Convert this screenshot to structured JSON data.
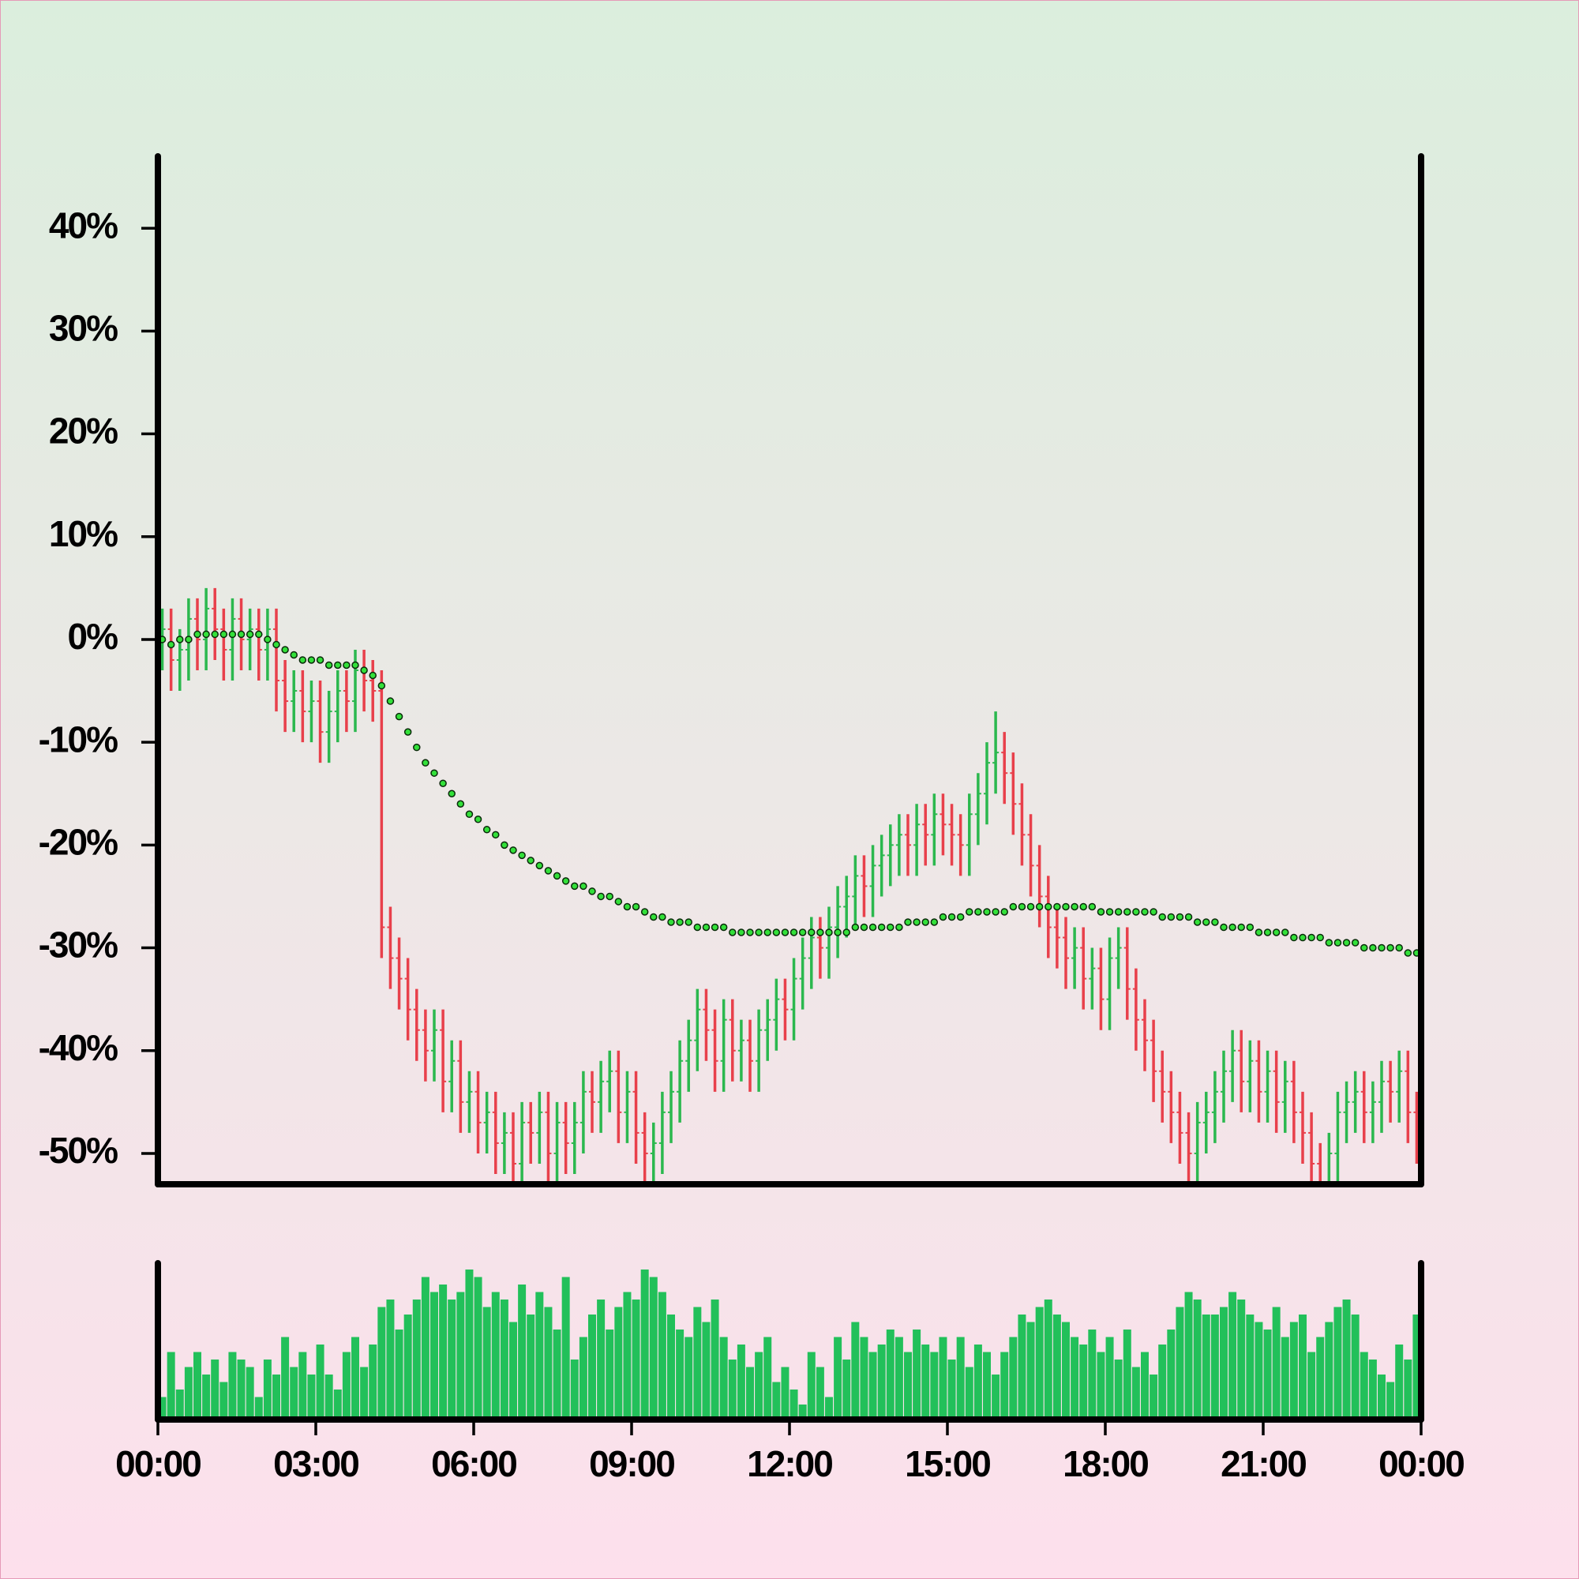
{
  "chart_data": {
    "type": "ohlc",
    "ylim": [
      -53,
      47
    ],
    "yticks": [
      {
        "value": 40,
        "label": "40%"
      },
      {
        "value": 30,
        "label": "30%"
      },
      {
        "value": 20,
        "label": "20%"
      },
      {
        "value": 10,
        "label": "10%"
      },
      {
        "value": 0,
        "label": "0%"
      },
      {
        "value": -10,
        "label": "-10%"
      },
      {
        "value": -20,
        "label": "-20%"
      },
      {
        "value": -30,
        "label": "-30%"
      },
      {
        "value": -40,
        "label": "-40%"
      },
      {
        "value": -50,
        "label": "-50%"
      }
    ],
    "xlim": [
      0,
      1440
    ],
    "xticks": [
      {
        "value": 0,
        "label": "00:00"
      },
      {
        "value": 180,
        "label": "03:00"
      },
      {
        "value": 360,
        "label": "06:00"
      },
      {
        "value": 540,
        "label": "09:00"
      },
      {
        "value": 720,
        "label": "12:00"
      },
      {
        "value": 900,
        "label": "15:00"
      },
      {
        "value": 1080,
        "label": "18:00"
      },
      {
        "value": 1260,
        "label": "21:00"
      },
      {
        "value": 1440,
        "label": "00:00"
      }
    ],
    "x": [
      5,
      15,
      25,
      35,
      45,
      55,
      65,
      75,
      85,
      95,
      105,
      115,
      125,
      135,
      145,
      155,
      165,
      175,
      185,
      195,
      205,
      215,
      225,
      235,
      245,
      255,
      265,
      275,
      285,
      295,
      305,
      315,
      325,
      335,
      345,
      355,
      365,
      375,
      385,
      395,
      405,
      415,
      425,
      435,
      445,
      455,
      465,
      475,
      485,
      495,
      505,
      515,
      525,
      535,
      545,
      555,
      565,
      575,
      585,
      595,
      605,
      615,
      625,
      635,
      645,
      655,
      665,
      675,
      685,
      695,
      705,
      715,
      725,
      735,
      745,
      755,
      765,
      775,
      785,
      795,
      805,
      815,
      825,
      835,
      845,
      855,
      865,
      875,
      885,
      895,
      905,
      915,
      925,
      935,
      945,
      955,
      965,
      975,
      985,
      995,
      1005,
      1015,
      1025,
      1035,
      1045,
      1055,
      1065,
      1075,
      1085,
      1095,
      1105,
      1115,
      1125,
      1135,
      1145,
      1155,
      1165,
      1175,
      1185,
      1195,
      1205,
      1215,
      1225,
      1235,
      1245,
      1255,
      1265,
      1275,
      1285,
      1295,
      1305,
      1315,
      1325,
      1335,
      1345,
      1355,
      1365,
      1375,
      1385,
      1395,
      1405,
      1415,
      1425,
      1435
    ],
    "open": [
      0,
      1,
      -2,
      -1,
      2,
      0,
      3,
      1,
      -1,
      2,
      0,
      1,
      -1,
      1,
      -4,
      -6,
      -5,
      -7,
      -6,
      -9,
      -7,
      -5,
      -6,
      -3,
      -4,
      -5,
      -28,
      -31,
      -33,
      -36,
      -38,
      -40,
      -38,
      -43,
      -41,
      -45,
      -44,
      -47,
      -46,
      -49,
      -48,
      -51,
      -47,
      -48,
      -46,
      -50,
      -47,
      -49,
      -47,
      -44,
      -45,
      -43,
      -42,
      -46,
      -44,
      -48,
      -50,
      -49,
      -46,
      -44,
      -41,
      -39,
      -36,
      -38,
      -41,
      -37,
      -40,
      -39,
      -41,
      -38,
      -37,
      -35,
      -36,
      -33,
      -31,
      -29,
      -30,
      -28,
      -26,
      -25,
      -23,
      -24,
      -22,
      -21,
      -20,
      -19,
      -20,
      -18,
      -19,
      -17,
      -18,
      -19,
      -20,
      -17,
      -15,
      -12,
      -11,
      -13,
      -16,
      -19,
      -22,
      -25,
      -28,
      -29,
      -31,
      -30,
      -33,
      -32,
      -35,
      -31,
      -30,
      -34,
      -37,
      -39,
      -42,
      -44,
      -46,
      -48,
      -50,
      -47,
      -46,
      -44,
      -42,
      -40,
      -43,
      -41,
      -44,
      -42,
      -45,
      -43,
      -46,
      -48,
      -51,
      -53,
      -50,
      -46,
      -45,
      -44,
      -46,
      -45,
      -43,
      -44,
      -42,
      -46
    ],
    "high": [
      3,
      3,
      1,
      4,
      4,
      5,
      5,
      3,
      4,
      4,
      3,
      3,
      3,
      3,
      -2,
      -3,
      -3,
      -4,
      -4,
      -5,
      -3,
      -3,
      -1,
      -1,
      -2,
      -3,
      -26,
      -29,
      -31,
      -34,
      -36,
      -36,
      -36,
      -39,
      -39,
      -42,
      -42,
      -44,
      -44,
      -46,
      -46,
      -45,
      -45,
      -44,
      -44,
      -45,
      -45,
      -45,
      -42,
      -42,
      -41,
      -40,
      -40,
      -42,
      -42,
      -46,
      -47,
      -44,
      -42,
      -39,
      -37,
      -34,
      -34,
      -36,
      -35,
      -35,
      -37,
      -37,
      -36,
      -35,
      -33,
      -33,
      -31,
      -29,
      -27,
      -27,
      -26,
      -24,
      -23,
      -21,
      -21,
      -20,
      -19,
      -18,
      -17,
      -17,
      -16,
      -16,
      -15,
      -15,
      -16,
      -17,
      -15,
      -13,
      -10,
      -7,
      -9,
      -11,
      -14,
      -17,
      -20,
      -23,
      -26,
      -27,
      -28,
      -28,
      -30,
      -30,
      -29,
      -28,
      -28,
      -32,
      -35,
      -37,
      -40,
      -42,
      -44,
      -46,
      -45,
      -44,
      -42,
      -40,
      -38,
      -38,
      -39,
      -39,
      -40,
      -40,
      -41,
      -41,
      -44,
      -46,
      -49,
      -48,
      -44,
      -43,
      -42,
      -42,
      -43,
      -41,
      -41,
      -40,
      -40,
      -44
    ],
    "low": [
      -3,
      -5,
      -5,
      -4,
      -3,
      -3,
      -2,
      -4,
      -4,
      -3,
      -3,
      -4,
      -4,
      -7,
      -9,
      -9,
      -10,
      -10,
      -12,
      -12,
      -10,
      -9,
      -9,
      -7,
      -8,
      -31,
      -34,
      -36,
      -39,
      -41,
      -43,
      -43,
      -46,
      -46,
      -48,
      -48,
      -50,
      -50,
      -52,
      -52,
      -54,
      -54,
      -51,
      -51,
      -53,
      -53,
      -52,
      -52,
      -50,
      -48,
      -48,
      -46,
      -49,
      -49,
      -51,
      -53,
      -53,
      -52,
      -49,
      -47,
      -44,
      -42,
      -41,
      -44,
      -44,
      -43,
      -43,
      -44,
      -44,
      -41,
      -40,
      -39,
      -39,
      -36,
      -34,
      -33,
      -33,
      -31,
      -29,
      -28,
      -27,
      -27,
      -25,
      -24,
      -23,
      -23,
      -23,
      -22,
      -22,
      -21,
      -22,
      -23,
      -23,
      -20,
      -18,
      -15,
      -16,
      -19,
      -22,
      -25,
      -28,
      -31,
      -32,
      -34,
      -34,
      -36,
      -36,
      -38,
      -38,
      -34,
      -37,
      -40,
      -42,
      -45,
      -47,
      -49,
      -51,
      -53,
      -53,
      -50,
      -49,
      -47,
      -45,
      -46,
      -46,
      -47,
      -47,
      -48,
      -48,
      -49,
      -51,
      -54,
      -56,
      -56,
      -53,
      -49,
      -48,
      -49,
      -49,
      -48,
      -47,
      -47,
      -49,
      -51
    ],
    "close": [
      1,
      -2,
      -1,
      2,
      0,
      3,
      1,
      -1,
      2,
      0,
      1,
      -1,
      1,
      -4,
      -6,
      -5,
      -7,
      -6,
      -9,
      -7,
      -5,
      -6,
      -3,
      -4,
      -5,
      -28,
      -31,
      -33,
      -36,
      -38,
      -40,
      -38,
      -43,
      -41,
      -45,
      -44,
      -47,
      -46,
      -49,
      -48,
      -51,
      -47,
      -48,
      -46,
      -50,
      -47,
      -49,
      -47,
      -44,
      -45,
      -43,
      -42,
      -46,
      -44,
      -48,
      -50,
      -49,
      -46,
      -44,
      -41,
      -39,
      -36,
      -38,
      -41,
      -37,
      -40,
      -39,
      -41,
      -38,
      -37,
      -35,
      -36,
      -33,
      -31,
      -29,
      -30,
      -28,
      -26,
      -25,
      -23,
      -24,
      -22,
      -21,
      -20,
      -19,
      -20,
      -18,
      -19,
      -17,
      -18,
      -19,
      -20,
      -17,
      -15,
      -12,
      -11,
      -13,
      -16,
      -19,
      -22,
      -25,
      -28,
      -29,
      -31,
      -30,
      -33,
      -32,
      -35,
      -31,
      -30,
      -34,
      -37,
      -39,
      -42,
      -44,
      -46,
      -48,
      -50,
      -47,
      -46,
      -44,
      -42,
      -40,
      -43,
      -41,
      -44,
      -42,
      -45,
      -43,
      -46,
      -48,
      -51,
      -53,
      -50,
      -46,
      -45,
      -44,
      -46,
      -45,
      -43,
      -44,
      -42,
      -46,
      -48
    ],
    "up_color": "#2bb84e",
    "down_color": "#e8404b",
    "moving_average": {
      "color": "#33e03a",
      "values": [
        0,
        -0.5,
        0,
        0,
        0.5,
        0.5,
        0.5,
        0.5,
        0.5,
        0.5,
        0.5,
        0.5,
        0,
        -0.5,
        -1,
        -1.5,
        -2,
        -2,
        -2,
        -2.5,
        -2.5,
        -2.5,
        -2.5,
        -3,
        -3.5,
        -4.5,
        -6,
        -7.5,
        -9,
        -10.5,
        -12,
        -13,
        -14,
        -15,
        -16,
        -17,
        -17.5,
        -18.5,
        -19,
        -20,
        -20.5,
        -21,
        -21.5,
        -22,
        -22.5,
        -23,
        -23.5,
        -24,
        -24,
        -24.5,
        -25,
        -25,
        -25.5,
        -26,
        -26,
        -26.5,
        -27,
        -27,
        -27.5,
        -27.5,
        -27.5,
        -28,
        -28,
        -28,
        -28,
        -28.5,
        -28.5,
        -28.5,
        -28.5,
        -28.5,
        -28.5,
        -28.5,
        -28.5,
        -28.5,
        -28.5,
        -28.5,
        -28.5,
        -28.5,
        -28.5,
        -28,
        -28,
        -28,
        -28,
        -28,
        -28,
        -27.5,
        -27.5,
        -27.5,
        -27.5,
        -27,
        -27,
        -27,
        -26.5,
        -26.5,
        -26.5,
        -26.5,
        -26.5,
        -26,
        -26,
        -26,
        -26,
        -26,
        -26,
        -26,
        -26,
        -26,
        -26,
        -26.5,
        -26.5,
        -26.5,
        -26.5,
        -26.5,
        -26.5,
        -26.5,
        -27,
        -27,
        -27,
        -27,
        -27.5,
        -27.5,
        -27.5,
        -28,
        -28,
        -28,
        -28,
        -28.5,
        -28.5,
        -28.5,
        -28.5,
        -29,
        -29,
        -29,
        -29,
        -29.5,
        -29.5,
        -29.5,
        -29.5,
        -30,
        -30,
        -30,
        -30,
        -30,
        -30.5,
        -30.5
      ]
    },
    "volume": {
      "color": "#22c05a",
      "values": [
        15,
        45,
        20,
        35,
        45,
        30,
        40,
        25,
        45,
        40,
        35,
        15,
        40,
        30,
        55,
        35,
        45,
        30,
        50,
        30,
        20,
        45,
        55,
        35,
        50,
        75,
        80,
        60,
        70,
        80,
        95,
        85,
        90,
        80,
        85,
        100,
        95,
        75,
        85,
        80,
        65,
        90,
        70,
        85,
        75,
        60,
        95,
        40,
        55,
        70,
        80,
        60,
        75,
        85,
        80,
        100,
        95,
        85,
        70,
        60,
        55,
        75,
        65,
        80,
        55,
        40,
        50,
        35,
        45,
        55,
        25,
        35,
        20,
        10,
        45,
        35,
        15,
        55,
        40,
        65,
        55,
        45,
        50,
        60,
        55,
        45,
        60,
        50,
        45,
        55,
        40,
        55,
        35,
        50,
        45,
        30,
        45,
        55,
        70,
        65,
        75,
        80,
        70,
        65,
        55,
        50,
        60,
        45,
        55,
        40,
        60,
        35,
        45,
        30,
        50,
        60,
        75,
        85,
        80,
        70,
        70,
        75,
        85,
        80,
        70,
        65,
        60,
        75,
        55,
        65,
        70,
        45,
        55,
        65,
        75,
        80,
        70,
        45,
        40,
        30,
        25,
        50,
        40,
        70
      ]
    }
  }
}
